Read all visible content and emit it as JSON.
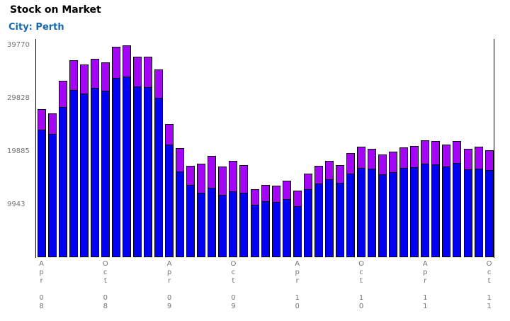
{
  "page": {
    "title": "Stock on Market",
    "subtitle": "City: Perth"
  },
  "colors": {
    "title": "#000000",
    "subtitle": "#1668b0",
    "axis_text": "#757575",
    "axis_line": "#000000",
    "bar_lower": "#0202f2",
    "bar_upper": "#a405f6",
    "bar_outline": "#000000"
  },
  "chart_data": {
    "type": "bar",
    "stacked": true,
    "title": "Stock on Market",
    "subtitle": "City: Perth",
    "grid": false,
    "legend": "none",
    "ylim": [
      0,
      39770
    ],
    "yticks": [
      9943,
      19885,
      29828,
      39770
    ],
    "x_unit": "month",
    "x_range": "Apr 2008 - Oct 2011",
    "bar_count": 43,
    "x_tick_labels": [
      "Apr 08",
      "Oct 08",
      "Apr 09",
      "Oct 09",
      "Apr 10",
      "Oct 10",
      "Apr 11",
      "Oct 11"
    ],
    "x_tick_bar_indices": [
      0,
      6,
      12,
      18,
      24,
      30,
      36,
      42
    ],
    "series": [
      {
        "name": "blue-lower-segment",
        "color": "#0202f2",
        "values": [
          23850,
          23050,
          28150,
          31350,
          30650,
          31700,
          31150,
          33550,
          33800,
          31950,
          31800,
          29850,
          21100,
          16100,
          13500,
          12050,
          13050,
          11700,
          12350,
          12050,
          9800,
          10500,
          10400,
          10900,
          9600,
          12700,
          13750,
          14550,
          13900,
          15700,
          16650,
          16550,
          15550,
          15900,
          16700,
          16800,
          17550,
          17400,
          17000,
          17650,
          16400,
          16550,
          16300
        ]
      },
      {
        "name": "purple-upper-segment",
        "color": "#a405f6",
        "values": [
          4050,
          4000,
          4950,
          5650,
          5550,
          5550,
          5450,
          6000,
          5970,
          5650,
          5900,
          5400,
          4000,
          4450,
          3700,
          5600,
          6100,
          5350,
          5750,
          5300,
          3100,
          3150,
          3150,
          3550,
          2950,
          3100,
          3450,
          3600,
          3450,
          3900,
          4100,
          3850,
          3800,
          4050,
          4000,
          4200,
          4400,
          4450,
          4150,
          4200,
          4000,
          4200,
          3800
        ]
      }
    ]
  }
}
